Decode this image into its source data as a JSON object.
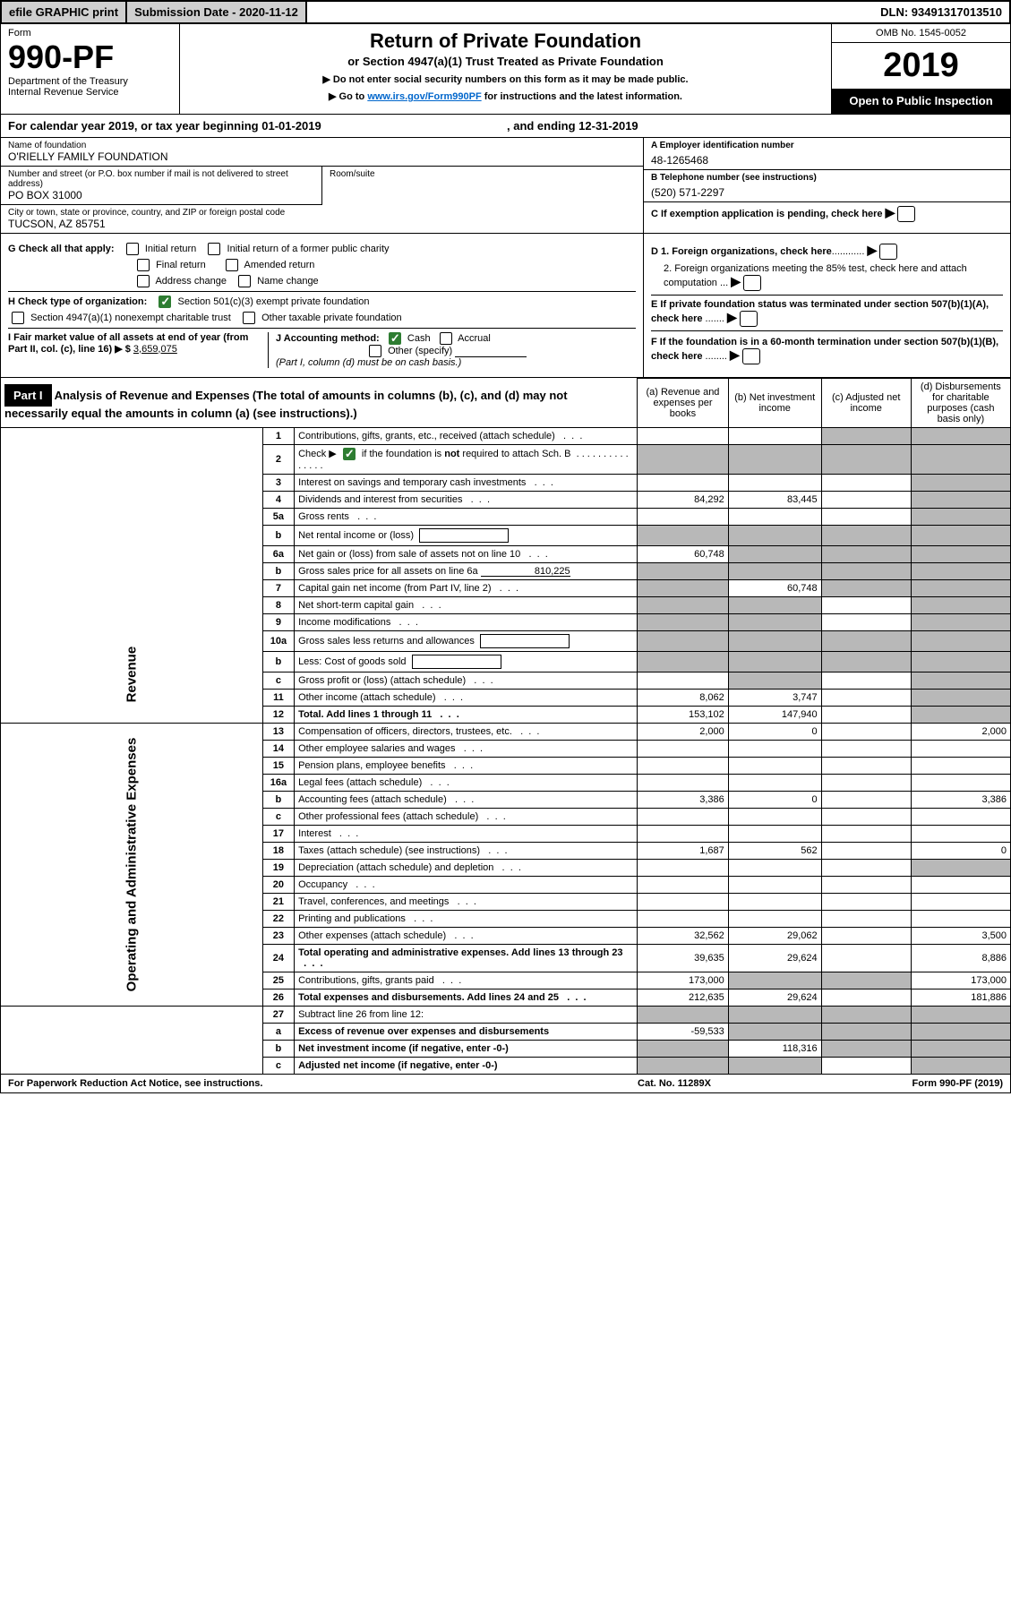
{
  "top_bar": {
    "efile_btn": "efile GRAPHIC print",
    "submission_label": "Submission Date - 2020-11-12",
    "dln": "DLN: 93491317013510"
  },
  "header": {
    "form_label": "Form",
    "form_number": "990-PF",
    "dept": "Department of the Treasury",
    "irs": "Internal Revenue Service",
    "title": "Return of Private Foundation",
    "subtitle": "or Section 4947(a)(1) Trust Treated as Private Foundation",
    "instruct1": "▶ Do not enter social security numbers on this form as it may be made public.",
    "instruct2_pre": "▶ Go to ",
    "instruct2_link": "www.irs.gov/Form990PF",
    "instruct2_post": " for instructions and the latest information.",
    "omb": "OMB No. 1545-0052",
    "year": "2019",
    "open": "Open to Public Inspection"
  },
  "cal_year": {
    "prefix": "For calendar year 2019, or tax year beginning ",
    "begin": "01-01-2019",
    "mid": " , and ending ",
    "end": "12-31-2019"
  },
  "entity": {
    "name_label": "Name of foundation",
    "name": "O'RIELLY FAMILY FOUNDATION",
    "addr_label": "Number and street (or P.O. box number if mail is not delivered to street address)",
    "addr": "PO BOX 31000",
    "room_label": "Room/suite",
    "room": "",
    "city_label": "City or town, state or province, country, and ZIP or foreign postal code",
    "city": "TUCSON, AZ  85751",
    "ein_label": "A Employer identification number",
    "ein": "48-1265468",
    "phone_label": "B Telephone number (see instructions)",
    "phone": "(520) 571-2297",
    "pending_label": "C If exemption application is pending, check here"
  },
  "section_g": {
    "label": "G Check all that apply:",
    "opts": {
      "initial": "Initial return",
      "initial_former": "Initial return of a former public charity",
      "final": "Final return",
      "amended": "Amended return",
      "addr_change": "Address change",
      "name_change": "Name change"
    }
  },
  "section_h": {
    "label": "H Check type of organization:",
    "opt1": "Section 501(c)(3) exempt private foundation",
    "opt2": "Section 4947(a)(1) nonexempt charitable trust",
    "opt3": "Other taxable private foundation"
  },
  "section_i": {
    "label": "I Fair market value of all assets at end of year (from Part II, col. (c), line 16) ▶ $",
    "value": "3,659,075"
  },
  "section_j": {
    "label": "J Accounting method:",
    "cash": "Cash",
    "accrual": "Accrual",
    "other": "Other (specify)",
    "note": "(Part I, column (d) must be on cash basis.)"
  },
  "section_d": {
    "d1": "D 1. Foreign organizations, check here",
    "d2": "2. Foreign organizations meeting the 85% test, check here and attach computation"
  },
  "section_e": {
    "text": "E  If private foundation status was terminated under section 507(b)(1)(A), check here"
  },
  "section_f": {
    "text": "F  If the foundation is in a 60-month termination under section 507(b)(1)(B), check here"
  },
  "part1": {
    "part_label": "Part I",
    "title": "Analysis of Revenue and Expenses",
    "title_sub": "(The total of amounts in columns (b), (c), and (d) may not necessarily equal the amounts in column (a) (see instructions).)",
    "col_a": "(a) Revenue and expenses per books",
    "col_b": "(b) Net investment income",
    "col_c": "(c) Adjusted net income",
    "col_d": "(d) Disbursements for charitable purposes (cash basis only)",
    "revenue_label": "Revenue",
    "expenses_label": "Operating and Administrative Expenses"
  },
  "rows": [
    {
      "n": "1",
      "d": "Contributions, gifts, grants, etc., received (attach schedule)",
      "a": "",
      "b": "",
      "c": "shade",
      "ds": "shade"
    },
    {
      "n": "2",
      "d": "Check ▶ ☑ if the foundation is not required to attach Sch. B",
      "a": "shade",
      "b": "shade",
      "c": "shade",
      "ds": "shade",
      "special": "check"
    },
    {
      "n": "3",
      "d": "Interest on savings and temporary cash investments",
      "a": "",
      "b": "",
      "c": "",
      "ds": "shade"
    },
    {
      "n": "4",
      "d": "Dividends and interest from securities",
      "a": "84,292",
      "b": "83,445",
      "c": "",
      "ds": "shade"
    },
    {
      "n": "5a",
      "d": "Gross rents",
      "a": "",
      "b": "",
      "c": "",
      "ds": "shade"
    },
    {
      "n": "b",
      "d": "Net rental income or (loss)",
      "a": "shade",
      "b": "shade",
      "c": "shade",
      "ds": "shade",
      "blank": true
    },
    {
      "n": "6a",
      "d": "Net gain or (loss) from sale of assets not on line 10",
      "a": "60,748",
      "b": "shade",
      "c": "shade",
      "ds": "shade"
    },
    {
      "n": "b",
      "d": "Gross sales price for all assets on line 6a",
      "a": "shade",
      "b": "shade",
      "c": "shade",
      "ds": "shade",
      "val_inline": "810,225"
    },
    {
      "n": "7",
      "d": "Capital gain net income (from Part IV, line 2)",
      "a": "shade",
      "b": "60,748",
      "c": "shade",
      "ds": "shade"
    },
    {
      "n": "8",
      "d": "Net short-term capital gain",
      "a": "shade",
      "b": "shade",
      "c": "",
      "ds": "shade"
    },
    {
      "n": "9",
      "d": "Income modifications",
      "a": "shade",
      "b": "shade",
      "c": "",
      "ds": "shade"
    },
    {
      "n": "10a",
      "d": "Gross sales less returns and allowances",
      "a": "shade",
      "b": "shade",
      "c": "shade",
      "ds": "shade",
      "blank": true
    },
    {
      "n": "b",
      "d": "Less: Cost of goods sold",
      "a": "shade",
      "b": "shade",
      "c": "shade",
      "ds": "shade",
      "blank": true
    },
    {
      "n": "c",
      "d": "Gross profit or (loss) (attach schedule)",
      "a": "",
      "b": "shade",
      "c": "",
      "ds": "shade"
    },
    {
      "n": "11",
      "d": "Other income (attach schedule)",
      "a": "8,062",
      "b": "3,747",
      "c": "",
      "ds": "shade"
    },
    {
      "n": "12",
      "d": "Total. Add lines 1 through 11",
      "a": "153,102",
      "b": "147,940",
      "c": "",
      "ds": "shade",
      "bold": true
    }
  ],
  "exp_rows": [
    {
      "n": "13",
      "d": "Compensation of officers, directors, trustees, etc.",
      "a": "2,000",
      "b": "0",
      "c": "",
      "ds": "2,000"
    },
    {
      "n": "14",
      "d": "Other employee salaries and wages",
      "a": "",
      "b": "",
      "c": "",
      "ds": ""
    },
    {
      "n": "15",
      "d": "Pension plans, employee benefits",
      "a": "",
      "b": "",
      "c": "",
      "ds": ""
    },
    {
      "n": "16a",
      "d": "Legal fees (attach schedule)",
      "a": "",
      "b": "",
      "c": "",
      "ds": ""
    },
    {
      "n": "b",
      "d": "Accounting fees (attach schedule)",
      "a": "3,386",
      "b": "0",
      "c": "",
      "ds": "3,386"
    },
    {
      "n": "c",
      "d": "Other professional fees (attach schedule)",
      "a": "",
      "b": "",
      "c": "",
      "ds": ""
    },
    {
      "n": "17",
      "d": "Interest",
      "a": "",
      "b": "",
      "c": "",
      "ds": ""
    },
    {
      "n": "18",
      "d": "Taxes (attach schedule) (see instructions)",
      "a": "1,687",
      "b": "562",
      "c": "",
      "ds": "0"
    },
    {
      "n": "19",
      "d": "Depreciation (attach schedule) and depletion",
      "a": "",
      "b": "",
      "c": "",
      "ds": "shade"
    },
    {
      "n": "20",
      "d": "Occupancy",
      "a": "",
      "b": "",
      "c": "",
      "ds": ""
    },
    {
      "n": "21",
      "d": "Travel, conferences, and meetings",
      "a": "",
      "b": "",
      "c": "",
      "ds": ""
    },
    {
      "n": "22",
      "d": "Printing and publications",
      "a": "",
      "b": "",
      "c": "",
      "ds": ""
    },
    {
      "n": "23",
      "d": "Other expenses (attach schedule)",
      "a": "32,562",
      "b": "29,062",
      "c": "",
      "ds": "3,500"
    },
    {
      "n": "24",
      "d": "Total operating and administrative expenses. Add lines 13 through 23",
      "a": "39,635",
      "b": "29,624",
      "c": "",
      "ds": "8,886",
      "bold": true
    },
    {
      "n": "25",
      "d": "Contributions, gifts, grants paid",
      "a": "173,000",
      "b": "shade",
      "c": "shade",
      "ds": "173,000"
    },
    {
      "n": "26",
      "d": "Total expenses and disbursements. Add lines 24 and 25",
      "a": "212,635",
      "b": "29,624",
      "c": "",
      "ds": "181,886",
      "bold": true
    }
  ],
  "final_rows": [
    {
      "n": "27",
      "d": "Subtract line 26 from line 12:",
      "a": "shade",
      "b": "shade",
      "c": "shade",
      "ds": "shade"
    },
    {
      "n": "a",
      "d": "Excess of revenue over expenses and disbursements",
      "a": "-59,533",
      "b": "shade",
      "c": "shade",
      "ds": "shade",
      "bold": true
    },
    {
      "n": "b",
      "d": "Net investment income (if negative, enter -0-)",
      "a": "shade",
      "b": "118,316",
      "c": "shade",
      "ds": "shade",
      "bold": true
    },
    {
      "n": "c",
      "d": "Adjusted net income (if negative, enter -0-)",
      "a": "shade",
      "b": "shade",
      "c": "",
      "ds": "shade",
      "bold": true
    }
  ],
  "footer": {
    "left": "For Paperwork Reduction Act Notice, see instructions.",
    "mid": "Cat. No. 11289X",
    "right": "Form 990-PF (2019)"
  }
}
